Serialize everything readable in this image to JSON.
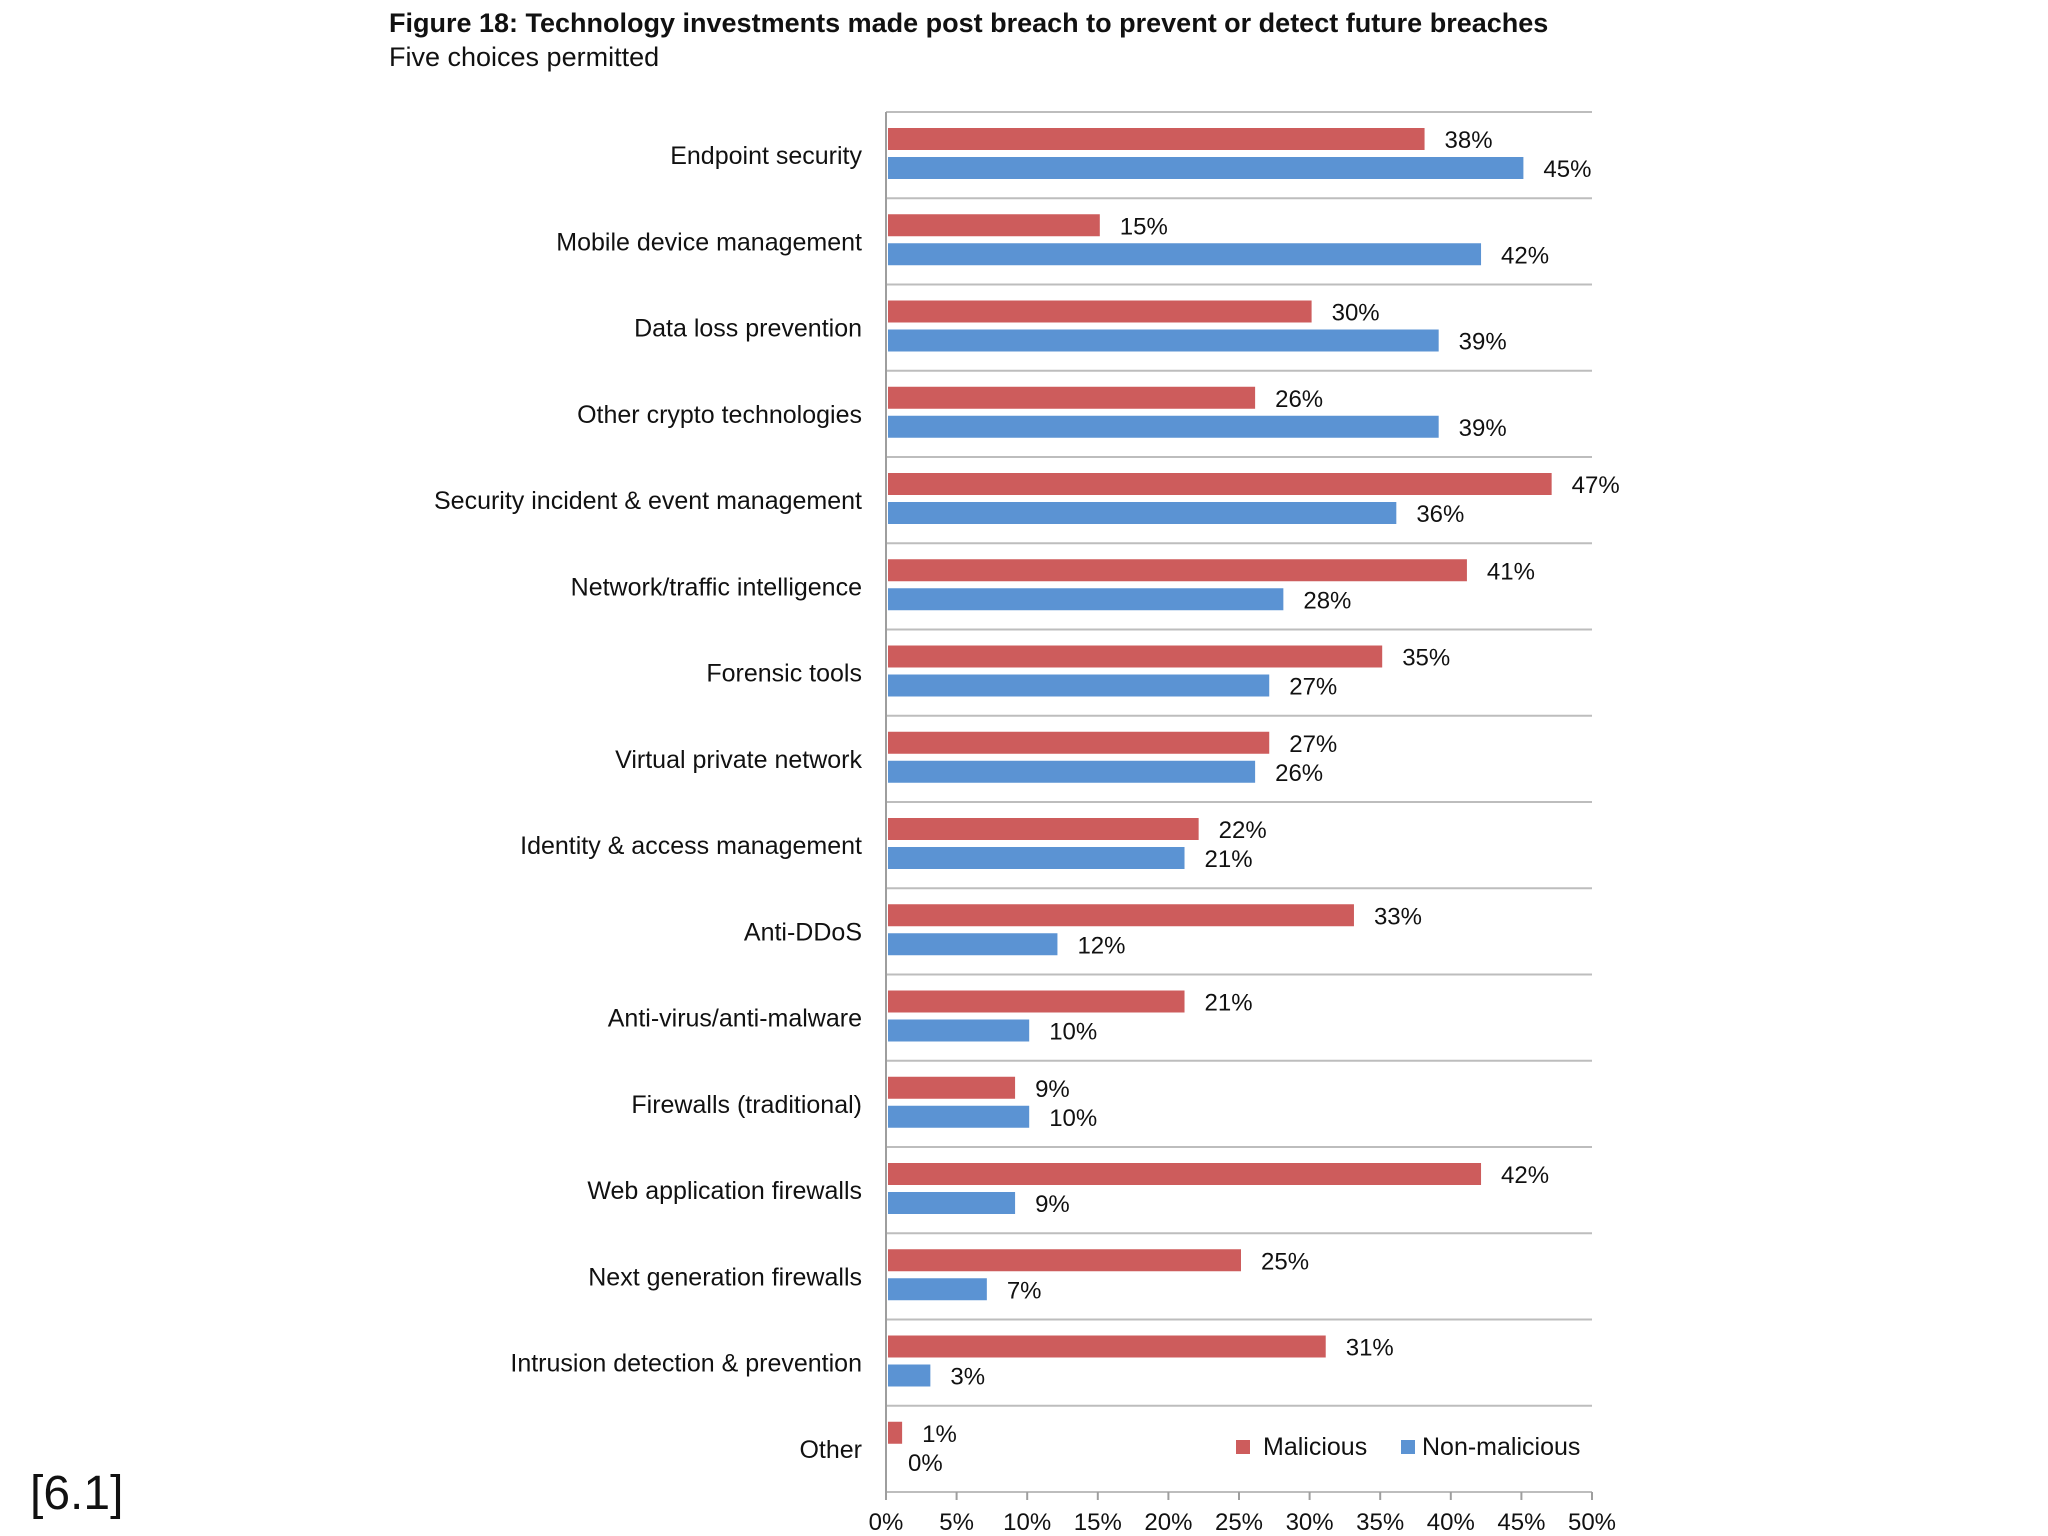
{
  "slide_reference": "[6.1]",
  "chart_data": {
    "type": "bar",
    "orientation": "horizontal",
    "title": "Figure 18: Technology investments made post breach to prevent or detect future breaches",
    "subtitle": "Five choices permitted",
    "categories": [
      "Endpoint security",
      "Mobile device management",
      "Data loss prevention",
      "Other crypto technologies",
      "Security incident & event management",
      "Network/traffic intelligence",
      "Forensic tools",
      "Virtual private network",
      "Identity & access management",
      "Anti-DDoS",
      "Anti-virus/anti-malware",
      "Firewalls (traditional)",
      "Web application firewalls",
      "Next generation firewalls",
      "Intrusion detection & prevention",
      "Other"
    ],
    "series": [
      {
        "name": "Malicious",
        "color": "#cd5c5c",
        "values": [
          38,
          15,
          30,
          26,
          47,
          41,
          35,
          27,
          22,
          33,
          21,
          9,
          42,
          25,
          31,
          1
        ]
      },
      {
        "name": "Non-malicious",
        "color": "#5b93d3",
        "values": [
          45,
          42,
          39,
          39,
          36,
          28,
          27,
          26,
          21,
          12,
          10,
          10,
          9,
          7,
          3,
          0
        ]
      }
    ],
    "value_suffix": "%",
    "xlim": [
      0,
      50
    ],
    "xticks": [
      0,
      5,
      10,
      15,
      20,
      25,
      30,
      35,
      40,
      45,
      50
    ],
    "xtick_labels": [
      "0%",
      "5%",
      "10%",
      "15%",
      "20%",
      "25%",
      "30%",
      "35%",
      "40%",
      "45%",
      "50%"
    ],
    "xlabel": "",
    "ylabel": "",
    "grid": "horizontal separators between categories",
    "legend_position": "bottom-right"
  }
}
